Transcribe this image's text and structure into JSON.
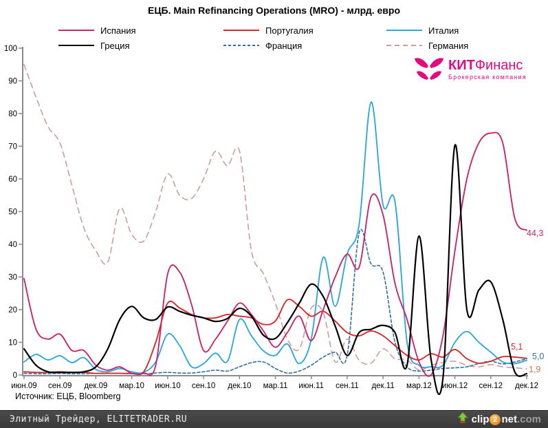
{
  "title": "ЕЦБ. Main Refinancing Operations (MRO) - млрд. евро",
  "legend": {
    "items": [
      {
        "label": "Испания"
      },
      {
        "label": "Португалия"
      },
      {
        "label": "Италия"
      },
      {
        "label": "Греция"
      },
      {
        "label": "Франция"
      },
      {
        "label": "Германия"
      }
    ]
  },
  "kit_logo": {
    "brand_bold": "КИТ",
    "brand_rest": "Финанс",
    "subtitle": "Брокерская компания",
    "color": "#e5097f"
  },
  "source": "Источник: ЕЦБ, Bloomberg",
  "footer": {
    "left": "Элитный Трейдер, ELITETRADER.RU",
    "logo": {
      "clip": "clip",
      "two": "2",
      "net": "net",
      "dotcom": ".com"
    }
  },
  "chart_data": {
    "type": "line",
    "title": "ЕЦБ. Main Refinancing Operations (MRO) - млрд. евро",
    "ylabel": "млрд. евро",
    "ylim": [
      0,
      100
    ],
    "y_ticks": [
      0,
      10,
      20,
      30,
      40,
      50,
      60,
      70,
      80,
      90,
      100
    ],
    "x_frequency": "monthly",
    "x_range": "июн.09 — дек.12",
    "x_tick_labels": [
      "июн.09",
      "сен.09",
      "дек.09",
      "мар.10",
      "июн.10",
      "сен.10",
      "дек.10",
      "мар.11",
      "июн.11",
      "сен.11",
      "дек.11",
      "мар.12",
      "июн.12",
      "сен.12",
      "дек.12"
    ],
    "grid": false,
    "legend_position": "top",
    "series": [
      {
        "name": "Испания",
        "color": "#C9256C",
        "dash": "solid",
        "values": [
          29.5,
          14,
          11,
          12.5,
          7.5,
          7.5,
          3,
          1.5,
          2.5,
          0.5,
          0.5,
          3,
          31,
          31.5,
          21.5,
          7.5,
          11,
          16.5,
          22,
          18.5,
          13.5,
          8.5,
          13,
          18,
          10.5,
          20,
          30,
          37,
          33,
          54.5,
          49,
          28,
          17,
          4,
          0,
          12,
          38,
          60,
          71,
          74,
          71,
          48,
          44.3
        ]
      },
      {
        "name": "Португалия",
        "color": "#D62B2B",
        "dash": "solid",
        "values": [
          1,
          0.8,
          0.8,
          1,
          0.8,
          0.8,
          0.5,
          0.5,
          0.5,
          0.5,
          1,
          10,
          22,
          20.5,
          18.5,
          17.5,
          17.5,
          18.5,
          18,
          17.5,
          15.5,
          16.5,
          23,
          21,
          18,
          19.5,
          16.5,
          13,
          12,
          13.5,
          12,
          9,
          6,
          4.6,
          6.5,
          5.5,
          7.8,
          5,
          3.6,
          4.2,
          5.6,
          5.5,
          5.1
        ]
      },
      {
        "name": "Италия",
        "color": "#2FA8DC",
        "dash": "solid",
        "values": [
          4,
          6.3,
          4.6,
          5.9,
          3.8,
          5.3,
          1.7,
          1,
          2,
          1,
          0.8,
          4,
          12.5,
          9,
          2.5,
          3.5,
          6.7,
          4.2,
          17,
          12,
          7.4,
          6,
          9.5,
          3.5,
          11,
          36,
          21,
          37,
          46,
          83.5,
          52,
          53,
          10,
          3,
          2.5,
          3,
          10,
          13.3,
          10,
          7,
          4,
          3.5,
          4.5
        ]
      },
      {
        "name": "Греция",
        "color": "#000000",
        "dash": "solid",
        "values": [
          8,
          3,
          1,
          0.8,
          0.8,
          1,
          2.5,
          8,
          17,
          21,
          17.5,
          17,
          20.8,
          19.5,
          18.3,
          17.5,
          16.4,
          17.3,
          20.4,
          18,
          12.2,
          11.2,
          16,
          22,
          27.8,
          24,
          15,
          6,
          13,
          14,
          15.2,
          13,
          3,
          42.5,
          5,
          -1,
          70.3,
          20,
          26,
          28.5,
          17,
          1,
          0.4
        ]
      },
      {
        "name": "Франция",
        "color": "#2E6DA8",
        "dash": "dashed-small",
        "values": [
          0.5,
          0.4,
          0.4,
          0.5,
          0.4,
          0.4,
          0.5,
          0.5,
          0.5,
          0.4,
          0.4,
          0.6,
          0.8,
          0.6,
          0.6,
          1,
          1.5,
          1.2,
          2.5,
          3.8,
          4,
          2,
          0.6,
          1.2,
          3,
          5.5,
          7,
          6,
          43.5,
          34,
          31.5,
          10,
          2.5,
          1.2,
          1.5,
          2,
          2.2,
          2.5,
          3.5,
          4.2,
          3.4,
          4,
          5
        ]
      },
      {
        "name": "Германия",
        "color": "#CD9C9E",
        "dash": "dashed-large",
        "values": [
          95,
          85,
          76,
          71,
          58,
          45,
          38,
          34.5,
          51,
          43,
          41,
          50,
          61.5,
          55,
          54,
          60,
          68.5,
          64,
          68.5,
          38,
          31,
          22,
          11,
          8,
          20.5,
          19,
          4,
          11,
          4.5,
          3.6,
          8,
          5,
          4.6,
          1.5,
          3,
          3.8,
          4.2,
          3,
          2.5,
          3.2,
          2.5,
          2.2,
          1.9
        ]
      }
    ],
    "end_labels": [
      {
        "text": "44,3",
        "series": "Испания",
        "color": "#C9256C"
      },
      {
        "text": "5,1",
        "series": "Португалия",
        "color": "#D62B2B"
      },
      {
        "text": "5,0",
        "series": "Франция",
        "color": "#2E6DA8"
      },
      {
        "text": "1,9",
        "series": "Германия",
        "color": "#C87A50"
      }
    ]
  }
}
